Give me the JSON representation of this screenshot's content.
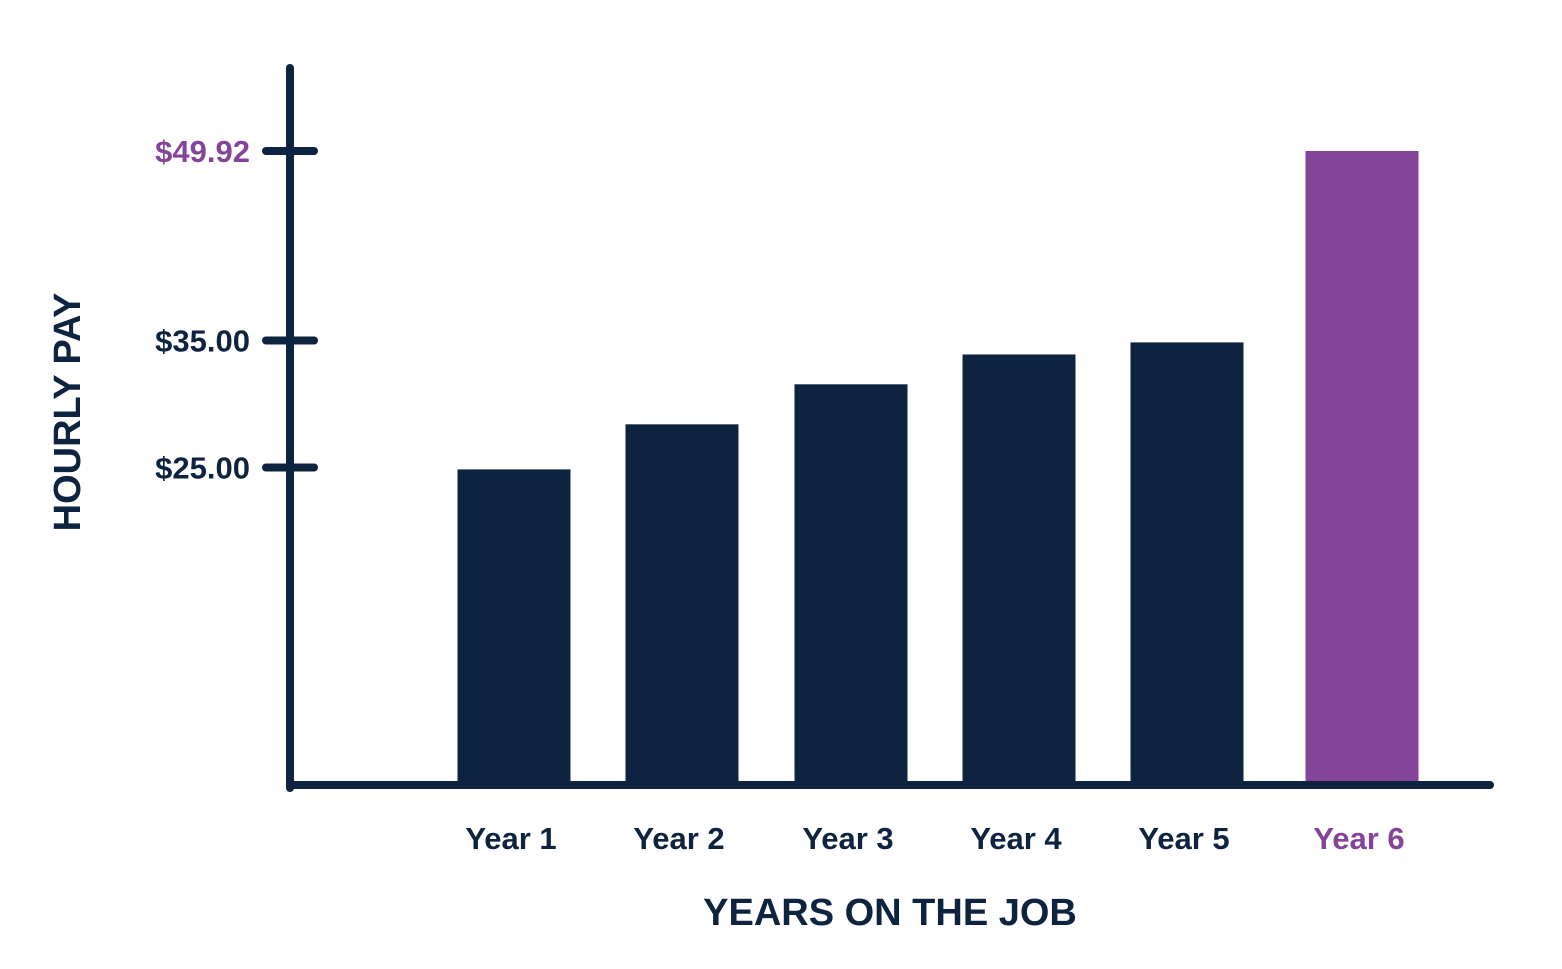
{
  "chart_data": {
    "type": "bar",
    "title": "",
    "xlabel": "YEARS ON THE JOB",
    "ylabel": "HOURLY PAY",
    "categories": [
      "Year 1",
      "Year 2",
      "Year 3",
      "Year 4",
      "Year 5",
      "Year 6"
    ],
    "values": [
      24.85,
      28.4,
      31.55,
      33.9,
      34.85,
      49.92
    ],
    "highlight_index": 5,
    "yticks": [
      {
        "value": 25,
        "label": "$25.00"
      },
      {
        "value": 35,
        "label": "$35.00"
      },
      {
        "value": 49.92,
        "label": "$49.92",
        "highlight": true
      }
    ],
    "ylim": [
      0,
      56
    ],
    "grid": false,
    "legend": "none",
    "colors": {
      "bar": "#0e2340",
      "highlight": "#84449a",
      "axis": "#0e2340",
      "text": "#0e2340"
    }
  }
}
